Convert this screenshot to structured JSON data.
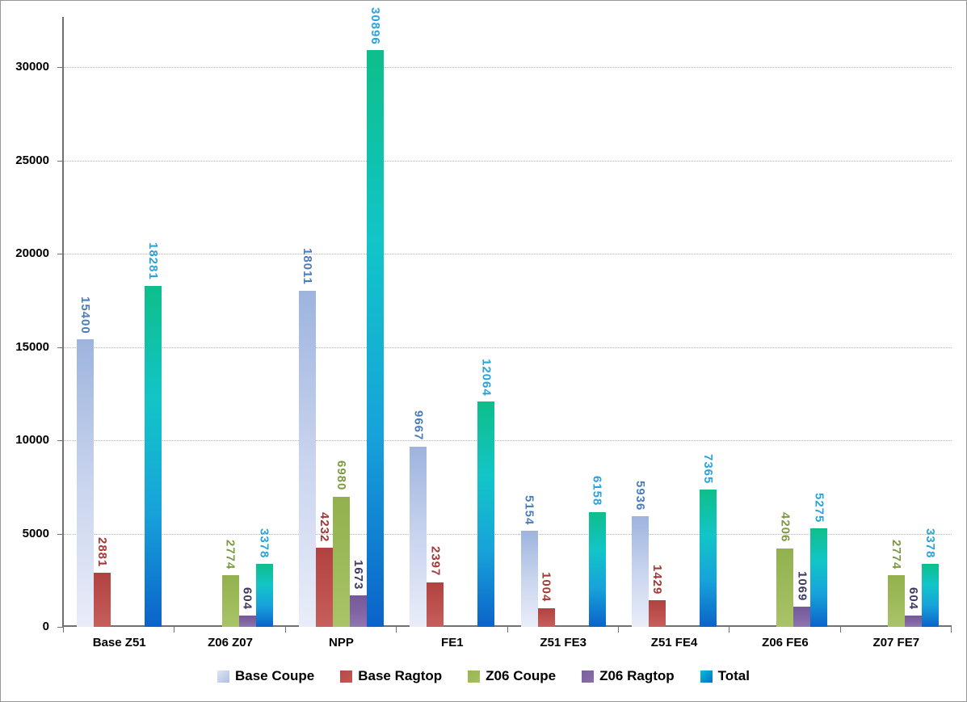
{
  "chart_data": {
    "type": "bar",
    "title": "",
    "xlabel": "",
    "ylabel": "",
    "categories": [
      "Base Z51",
      "Z06 Z07",
      "NPP",
      "FE1",
      "Z51 FE3",
      "Z51 FE4",
      "Z06 FE6",
      "Z07 FE7"
    ],
    "series": [
      {
        "name": "Base Coupe",
        "values": [
          15400,
          0,
          18011,
          9667,
          5154,
          5936,
          0,
          0
        ],
        "bar_gradient": [
          "#9db4de",
          "#c9d4ee",
          "#e9edf9"
        ],
        "label_color": "#4a7ebb"
      },
      {
        "name": "Base Ragtop",
        "values": [
          2881,
          0,
          4232,
          2397,
          1004,
          1429,
          0,
          0
        ],
        "bar_gradient": [
          "#b04341",
          "#bd4f4d",
          "#c6605c"
        ],
        "label_color": "#a23937"
      },
      {
        "name": "Z06 Coupe",
        "values": [
          0,
          2774,
          6980,
          0,
          0,
          0,
          4206,
          2774
        ],
        "bar_gradient": [
          "#92b14e",
          "#9dba5a",
          "#a9c468"
        ],
        "label_color": "#7d9a43"
      },
      {
        "name": "Z06 Ragtop",
        "values": [
          0,
          604,
          1673,
          0,
          0,
          0,
          1069,
          604
        ],
        "bar_gradient": [
          "#75589a",
          "#8064a2",
          "#8f76b0"
        ],
        "label_color": "#3e3a62"
      },
      {
        "name": "Total",
        "values": [
          18281,
          3378,
          30896,
          12064,
          6158,
          7365,
          5275,
          3378
        ],
        "bar_gradient": [
          "#0ebe8a",
          "#12c5c8",
          "#17a2da",
          "#0b63c9"
        ],
        "label_color": "#29a3dc"
      }
    ],
    "yticks": [
      0,
      5000,
      10000,
      15000,
      20000,
      25000,
      30000
    ],
    "ylim": [
      0,
      32500
    ],
    "grid": "horizontal-dotted",
    "legend_position": "bottom",
    "legend_swatches": {
      "Base Coupe": [
        "#dfe6f5",
        "#aebfe4"
      ],
      "Base Ragtop": [
        "#b54845",
        "#c25955"
      ],
      "Z06 Coupe": [
        "#97b554",
        "#a5c163"
      ],
      "Z06 Ragtop": [
        "#7a5d9e",
        "#8a70ab"
      ],
      "Total": [
        "#00c2d2",
        "#0a6ecd"
      ]
    }
  }
}
